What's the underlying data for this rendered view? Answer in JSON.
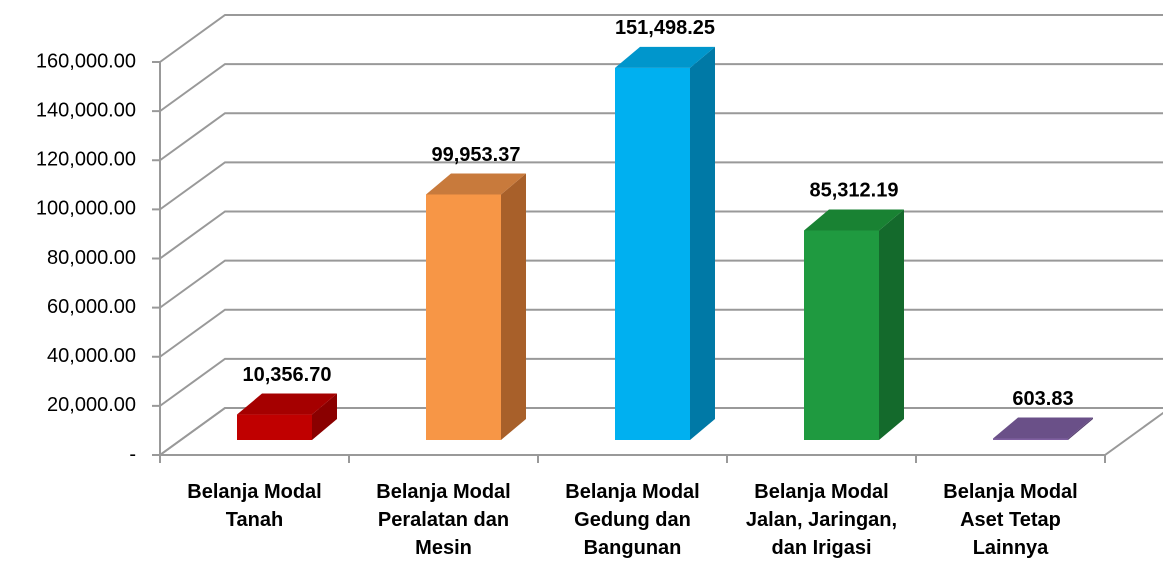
{
  "chart_data": {
    "type": "bar3d",
    "categories": [
      "Belanja Modal Tanah",
      "Belanja Modal Peralatan dan Mesin",
      "Belanja Modal Gedung dan Bangunan",
      "Belanja Modal Jalan, Jaringan, dan Irigasi",
      "Belanja Modal Aset Tetap Lainnya"
    ],
    "values": [
      10356.7,
      99953.37,
      151498.25,
      85312.19,
      603.83
    ],
    "value_labels": [
      "10,356.70",
      "99,953.37",
      "151,498.25",
      "85,312.19",
      "603.83"
    ],
    "colors": [
      "#c00000",
      "#f79646",
      "#00b0f0",
      "#1f9a40",
      "#7f5fa0"
    ],
    "side_colors": [
      "#8a0000",
      "#a8602a",
      "#0079a6",
      "#146a2c",
      "#574070"
    ],
    "top_colors": [
      "#a50000",
      "#c87a3c",
      "#0096cc",
      "#198233",
      "#6a5088"
    ],
    "ylim": [
      0,
      160000
    ],
    "yticks": [
      {
        "value": 0,
        "label": "-"
      },
      {
        "value": 20000,
        "label": "20,000.00"
      },
      {
        "value": 40000,
        "label": "40,000.00"
      },
      {
        "value": 60000,
        "label": "60,000.00"
      },
      {
        "value": 80000,
        "label": "80,000.00"
      },
      {
        "value": 100000,
        "label": "100,000.00"
      },
      {
        "value": 120000,
        "label": "120,000.00"
      },
      {
        "value": 140000,
        "label": "140,000.00"
      },
      {
        "value": 160000,
        "label": "160,000.00"
      }
    ],
    "grid": true
  }
}
